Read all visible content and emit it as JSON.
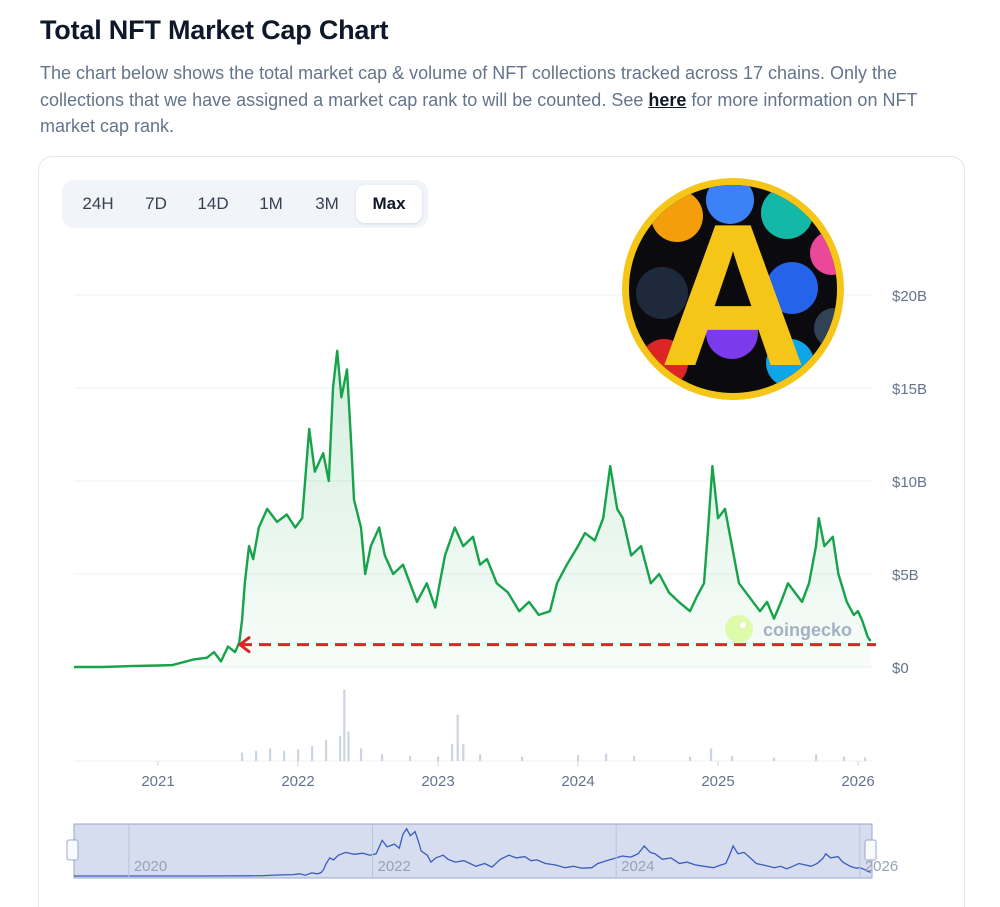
{
  "header": {
    "title": "Total NFT Market Cap Chart",
    "description_before": "The chart below shows the total market cap & volume of NFT collections tracked across 17 chains. Only the collections that we have assigned a market cap rank to will be counted. See ",
    "link_label": "here",
    "description_after": " for more information on NFT market cap rank."
  },
  "tabs": [
    {
      "label": "24H",
      "active": false
    },
    {
      "label": "7D",
      "active": false
    },
    {
      "label": "14D",
      "active": false
    },
    {
      "label": "1M",
      "active": false
    },
    {
      "label": "3M",
      "active": false
    },
    {
      "label": "Max",
      "active": true
    }
  ],
  "watermark": {
    "text": "coingecko"
  },
  "badge": {
    "letter": "A",
    "ring_color": "#f5c518"
  },
  "chart_data": {
    "type": "area",
    "title": "",
    "xlabel": "",
    "ylabel": "",
    "ylim": [
      0,
      20
    ],
    "y_unit": "B USD",
    "y_ticks": [
      "$0",
      "$5B",
      "$10B",
      "$15B",
      "$20B"
    ],
    "y_tick_values": [
      0,
      5,
      10,
      15,
      20
    ],
    "x_ticks": [
      "2021",
      "2022",
      "2023",
      "2024",
      "2025",
      "2026"
    ],
    "x_tick_values": [
      2021,
      2022,
      2023,
      2024,
      2025,
      2026
    ],
    "xlim": [
      2020.4,
      2026.1
    ],
    "grid": true,
    "line_color": "#16a34a",
    "reference_line": {
      "value": 1.2,
      "color": "#dc2626",
      "style": "dashed"
    },
    "series": [
      {
        "values": [
          [
            2020.4,
            0.0
          ],
          [
            2020.6,
            0.0
          ],
          [
            2020.8,
            0.05
          ],
          [
            2021.0,
            0.08
          ],
          [
            2021.1,
            0.1
          ],
          [
            2021.15,
            0.2
          ],
          [
            2021.25,
            0.4
          ],
          [
            2021.35,
            0.5
          ],
          [
            2021.4,
            0.8
          ],
          [
            2021.45,
            0.3
          ],
          [
            2021.5,
            1.1
          ],
          [
            2021.55,
            0.8
          ],
          [
            2021.58,
            1.3
          ],
          [
            2021.6,
            2.5
          ],
          [
            2021.62,
            4.5
          ],
          [
            2021.65,
            6.5
          ],
          [
            2021.68,
            5.8
          ],
          [
            2021.72,
            7.5
          ],
          [
            2021.78,
            8.5
          ],
          [
            2021.85,
            7.8
          ],
          [
            2021.92,
            8.2
          ],
          [
            2021.98,
            7.5
          ],
          [
            2022.03,
            8.0
          ],
          [
            2022.08,
            12.8
          ],
          [
            2022.12,
            10.5
          ],
          [
            2022.18,
            11.5
          ],
          [
            2022.22,
            10.0
          ],
          [
            2022.25,
            15.0
          ],
          [
            2022.28,
            17.0
          ],
          [
            2022.31,
            14.5
          ],
          [
            2022.35,
            16.0
          ],
          [
            2022.38,
            12.0
          ],
          [
            2022.4,
            9.0
          ],
          [
            2022.45,
            7.5
          ],
          [
            2022.48,
            5.0
          ],
          [
            2022.52,
            6.5
          ],
          [
            2022.58,
            7.5
          ],
          [
            2022.62,
            6.0
          ],
          [
            2022.68,
            5.0
          ],
          [
            2022.75,
            5.5
          ],
          [
            2022.8,
            4.5
          ],
          [
            2022.85,
            3.5
          ],
          [
            2022.92,
            4.5
          ],
          [
            2022.98,
            3.2
          ],
          [
            2023.05,
            6.0
          ],
          [
            2023.12,
            7.5
          ],
          [
            2023.18,
            6.5
          ],
          [
            2023.25,
            7.0
          ],
          [
            2023.3,
            5.5
          ],
          [
            2023.35,
            5.8
          ],
          [
            2023.42,
            4.5
          ],
          [
            2023.5,
            4.0
          ],
          [
            2023.58,
            3.0
          ],
          [
            2023.65,
            3.5
          ],
          [
            2023.72,
            2.8
          ],
          [
            2023.8,
            3.0
          ],
          [
            2023.85,
            4.5
          ],
          [
            2023.92,
            5.5
          ],
          [
            2024.0,
            6.5
          ],
          [
            2024.05,
            7.2
          ],
          [
            2024.12,
            6.8
          ],
          [
            2024.18,
            8.0
          ],
          [
            2024.23,
            10.8
          ],
          [
            2024.28,
            8.5
          ],
          [
            2024.32,
            8.0
          ],
          [
            2024.38,
            6.0
          ],
          [
            2024.45,
            6.5
          ],
          [
            2024.52,
            4.5
          ],
          [
            2024.58,
            5.0
          ],
          [
            2024.65,
            4.0
          ],
          [
            2024.72,
            3.5
          ],
          [
            2024.8,
            3.0
          ],
          [
            2024.85,
            3.8
          ],
          [
            2024.9,
            4.5
          ],
          [
            2024.93,
            7.5
          ],
          [
            2024.96,
            10.8
          ],
          [
            2025.0,
            8.0
          ],
          [
            2025.05,
            8.5
          ],
          [
            2025.1,
            6.5
          ],
          [
            2025.15,
            4.5
          ],
          [
            2025.22,
            3.8
          ],
          [
            2025.3,
            3.0
          ],
          [
            2025.35,
            3.5
          ],
          [
            2025.4,
            2.6
          ],
          [
            2025.45,
            3.5
          ],
          [
            2025.5,
            4.5
          ],
          [
            2025.55,
            4.0
          ],
          [
            2025.6,
            3.5
          ],
          [
            2025.65,
            4.5
          ],
          [
            2025.7,
            6.5
          ],
          [
            2025.72,
            8.0
          ],
          [
            2025.76,
            6.5
          ],
          [
            2025.82,
            7.0
          ],
          [
            2025.86,
            5.0
          ],
          [
            2025.92,
            3.5
          ],
          [
            2025.97,
            2.8
          ],
          [
            2026.0,
            3.0
          ],
          [
            2026.03,
            2.5
          ],
          [
            2026.07,
            1.6
          ],
          [
            2026.09,
            1.4
          ]
        ]
      }
    ],
    "volume": {
      "values": [
        [
          2021.6,
          0.1
        ],
        [
          2021.7,
          0.12
        ],
        [
          2021.8,
          0.15
        ],
        [
          2021.9,
          0.12
        ],
        [
          2022.0,
          0.14
        ],
        [
          2022.1,
          0.18
        ],
        [
          2022.2,
          0.25
        ],
        [
          2022.3,
          0.3
        ],
        [
          2022.33,
          0.85
        ],
        [
          2022.36,
          0.35
        ],
        [
          2022.45,
          0.15
        ],
        [
          2022.6,
          0.08
        ],
        [
          2022.8,
          0.06
        ],
        [
          2023.0,
          0.05
        ],
        [
          2023.1,
          0.2
        ],
        [
          2023.14,
          0.55
        ],
        [
          2023.18,
          0.2
        ],
        [
          2023.3,
          0.08
        ],
        [
          2023.6,
          0.05
        ],
        [
          2024.0,
          0.07
        ],
        [
          2024.2,
          0.09
        ],
        [
          2024.4,
          0.06
        ],
        [
          2024.8,
          0.05
        ],
        [
          2024.95,
          0.15
        ],
        [
          2025.1,
          0.06
        ],
        [
          2025.4,
          0.04
        ],
        [
          2025.7,
          0.08
        ],
        [
          2025.9,
          0.05
        ],
        [
          2026.05,
          0.04
        ]
      ],
      "ylim": [
        0,
        1
      ]
    },
    "navigator": {
      "x_ticks": [
        "2020",
        "2022",
        "2024",
        "2026"
      ],
      "x_tick_values": [
        2020,
        2022,
        2024,
        2026
      ]
    }
  }
}
